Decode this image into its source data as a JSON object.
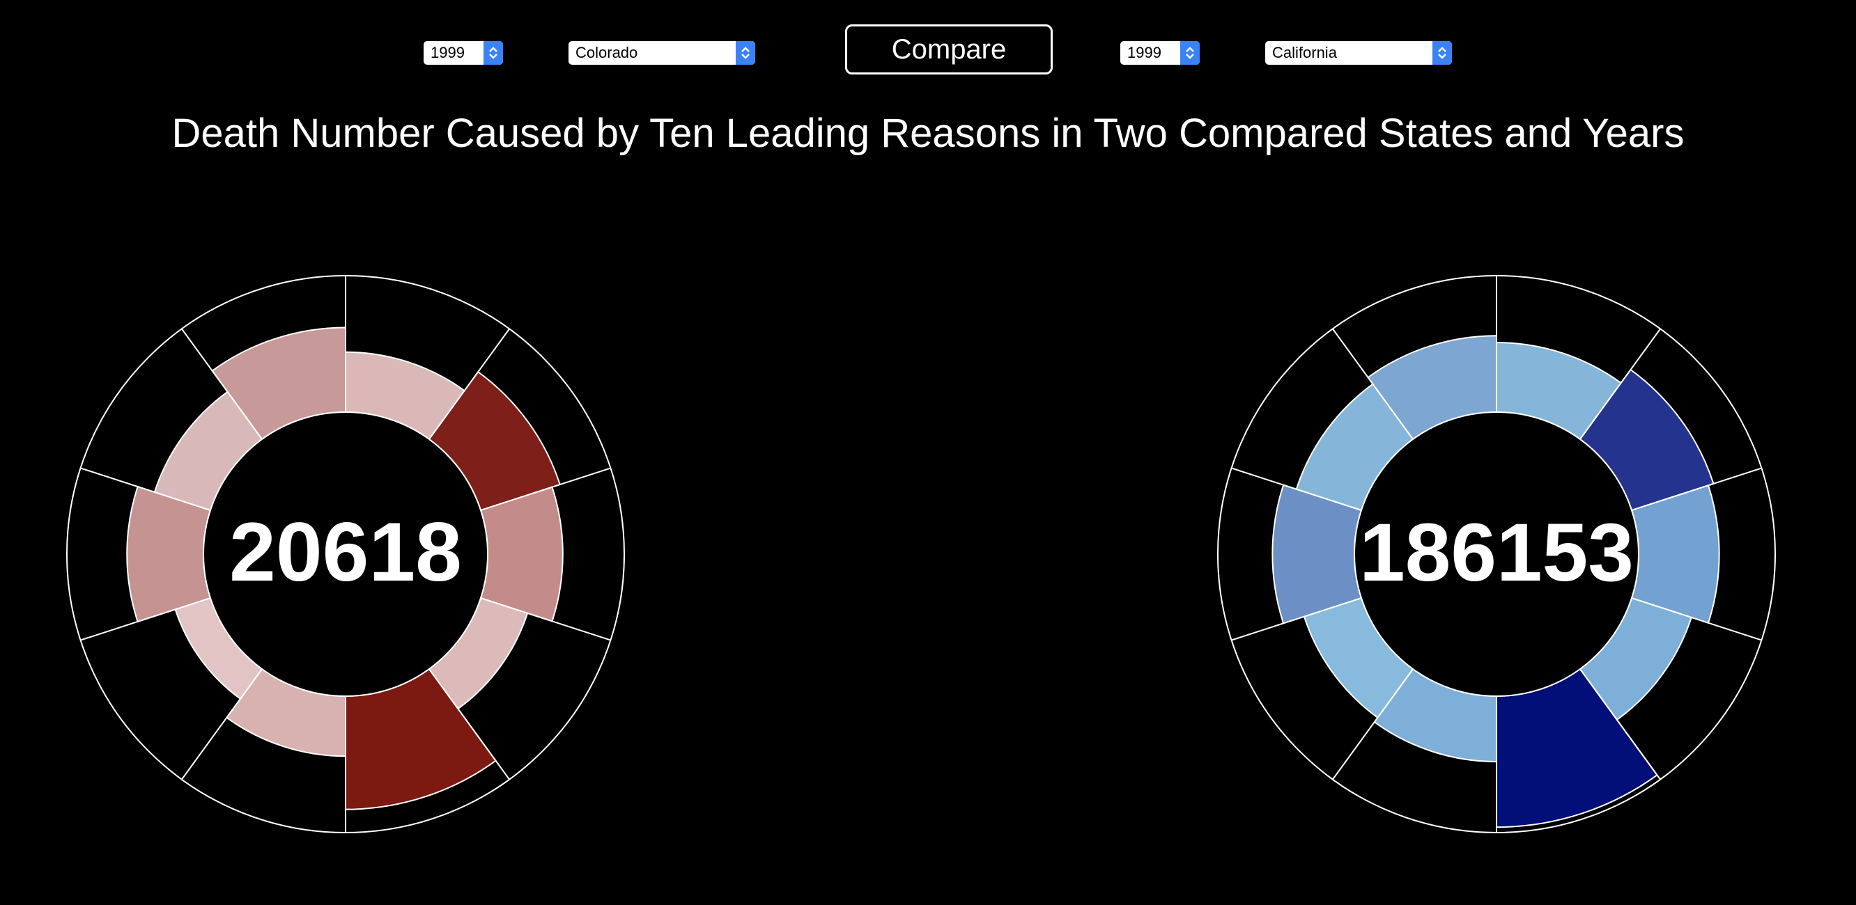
{
  "controls": {
    "left": {
      "year": "1999",
      "state": "Colorado"
    },
    "right": {
      "year": "1999",
      "state": "California"
    },
    "compare_label": "Compare"
  },
  "title": "Death Number Caused by Ten Leading Reasons in Two Compared States and Years",
  "chart_data": [
    {
      "type": "radial-bar",
      "state": "Colorado",
      "year": "1999",
      "total": "20618",
      "segments": 10,
      "values": [
        0.44,
        0.61,
        0.55,
        0.36,
        0.83,
        0.44,
        0.27,
        0.56,
        0.43,
        0.62
      ],
      "colors": [
        "#dab8b7",
        "#7f1f1a",
        "#c38c8a",
        "#dbbab9",
        "#7c1911",
        "#d8b2b0",
        "#e2c4c4",
        "#c59392",
        "#d8b8b9",
        "#c79998"
      ],
      "scale_color": "#7c1911"
    },
    {
      "type": "radial-bar",
      "state": "California",
      "year": "1999",
      "total": "186153",
      "segments": 10,
      "values": [
        0.51,
        0.63,
        0.59,
        0.46,
        0.96,
        0.48,
        0.44,
        0.6,
        0.5,
        0.56
      ],
      "colors": [
        "#85b6da",
        "#24338e",
        "#73a1d2",
        "#7eafd8",
        "#030f79",
        "#7eafd8",
        "#88badd",
        "#6c90c5",
        "#85b6da",
        "#7da6d3"
      ],
      "scale_color": "#030f79"
    }
  ]
}
